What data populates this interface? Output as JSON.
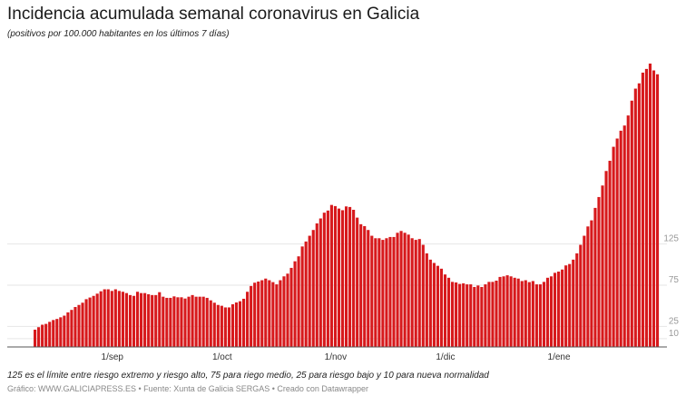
{
  "header": {
    "title": "Incidencia acumulada semanal coronavirus en Galicia",
    "subtitle": "(positivos por 100.000 habitantes en los últimos 7 días)"
  },
  "footer": {
    "note": "125 es el límite entre riesgo extremo y riesgo alto, 75 para riego medio, 25 para riesgo bajo y 10 para nueva normalidad",
    "credits": "Gráfico: WWW.GALICIAPRESS.ES • Fuente: Xunta de Galicia SERGAS • Creado con Datawrapper"
  },
  "chart_data": {
    "type": "bar",
    "title": "Incidencia acumulada semanal coronavirus en Galicia",
    "xlabel": "",
    "ylabel": "",
    "x_range": [
      "2020-08-11",
      "2021-01-28"
    ],
    "ylim": [
      0,
      350
    ],
    "grid": true,
    "color": "#d7191c",
    "y_ticks": [
      {
        "value": 10,
        "label": "10"
      },
      {
        "value": 25,
        "label": "25"
      },
      {
        "value": 75,
        "label": "75"
      },
      {
        "value": 125,
        "label": "125"
      }
    ],
    "x_ticks": [
      {
        "date": "2020-09-01",
        "label": "1/sep"
      },
      {
        "date": "2020-10-01",
        "label": "1/oct"
      },
      {
        "date": "2020-11-01",
        "label": "1/nov"
      },
      {
        "date": "2020-12-01",
        "label": "1/dic"
      },
      {
        "date": "2021-01-01",
        "label": "1/ene"
      }
    ],
    "values": [
      21,
      24,
      27,
      28,
      30.5,
      32.7,
      34,
      36,
      38,
      42,
      45,
      48.5,
      51,
      53.7,
      58,
      60,
      62,
      64.7,
      67.6,
      70,
      70,
      68,
      70,
      68,
      67,
      65.4,
      63,
      62,
      67,
      65.4,
      65.4,
      64,
      63,
      63,
      66.5,
      61,
      59.6,
      59.6,
      61.4,
      60.3,
      60.3,
      58.8,
      61,
      63,
      61,
      61,
      61,
      59.6,
      56.6,
      53.7,
      51,
      50,
      48,
      48,
      51.8,
      54,
      55.5,
      58.5,
      67,
      74,
      78,
      79.4,
      81,
      83,
      81,
      78.7,
      76,
      81,
      85.7,
      89,
      96,
      104,
      110,
      122,
      128,
      135,
      142,
      150,
      156,
      163,
      165.6,
      172.4,
      171,
      168,
      166,
      170.6,
      169.9,
      166.5,
      157,
      149,
      146.7,
      142,
      135,
      132,
      132,
      130,
      132,
      133.5,
      133.5,
      138.6,
      140.8,
      138.6,
      136.4,
      132,
      130,
      131,
      124,
      113.6,
      106,
      102,
      98.5,
      95,
      88,
      84,
      79,
      78.3,
      76.5,
      77.2,
      76,
      76,
      72.8,
      74.6,
      72.8,
      76,
      79,
      79,
      80.5,
      85,
      85.7,
      87,
      85.7,
      84,
      83,
      80,
      81,
      78.7,
      80,
      76,
      76,
      79,
      84,
      85.7,
      90,
      91.5,
      94,
      99,
      100.7,
      106,
      113.6,
      124,
      135,
      146.3,
      153.7,
      168.8,
      182,
      196,
      213.6,
      226,
      243,
      253,
      262.5,
      268.8,
      281,
      299,
      313.6,
      320,
      333,
      337.5,
      344,
      335.7,
      331
    ]
  }
}
